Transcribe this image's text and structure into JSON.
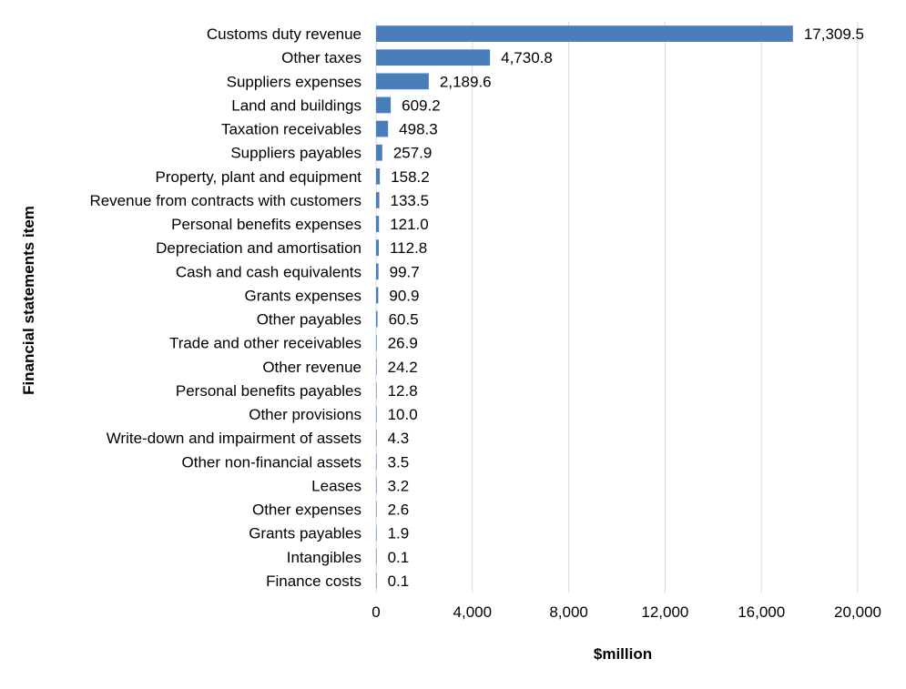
{
  "chart_data": {
    "type": "bar",
    "orientation": "horizontal",
    "title": "",
    "xlabel": "$million",
    "ylabel": "Financial statements item",
    "xlim": [
      0,
      20000
    ],
    "xticks": [
      0,
      4000,
      8000,
      12000,
      16000,
      20000
    ],
    "xtick_labels": [
      "0",
      "4,000",
      "8,000",
      "12,000",
      "16,000",
      "20,000"
    ],
    "grid": true,
    "legend": "none",
    "bar_color": "#4a7ebb",
    "categories": [
      "Customs duty revenue",
      "Other taxes",
      "Suppliers expenses",
      "Land and buildings",
      "Taxation receivables",
      "Suppliers payables",
      "Property, plant and equipment",
      "Revenue from contracts with customers",
      "Personal benefits expenses",
      "Depreciation and amortisation",
      "Cash and cash equivalents",
      "Grants expenses",
      "Other payables",
      "Trade and other receivables",
      "Other revenue",
      "Personal benefits payables",
      "Other provisions",
      "Write-down and impairment of assets",
      "Other non-financial assets",
      "Leases",
      "Other expenses",
      "Grants payables",
      "Intangibles",
      "Finance costs"
    ],
    "values": [
      17309.5,
      4730.8,
      2189.6,
      609.2,
      498.3,
      257.9,
      158.2,
      133.5,
      121.0,
      112.8,
      99.7,
      90.9,
      60.5,
      26.9,
      24.2,
      12.8,
      10.0,
      4.3,
      3.5,
      3.2,
      2.6,
      1.9,
      0.1,
      0.1
    ],
    "value_labels": [
      "17,309.5",
      "4,730.8",
      "2,189.6",
      "609.2",
      "498.3",
      "257.9",
      "158.2",
      "133.5",
      "121.0",
      "112.8",
      "99.7",
      "90.9",
      "60.5",
      "26.9",
      "24.2",
      "12.8",
      "10.0",
      "4.3",
      "3.5",
      "3.2",
      "2.6",
      "1.9",
      "0.1",
      "0.1"
    ]
  }
}
